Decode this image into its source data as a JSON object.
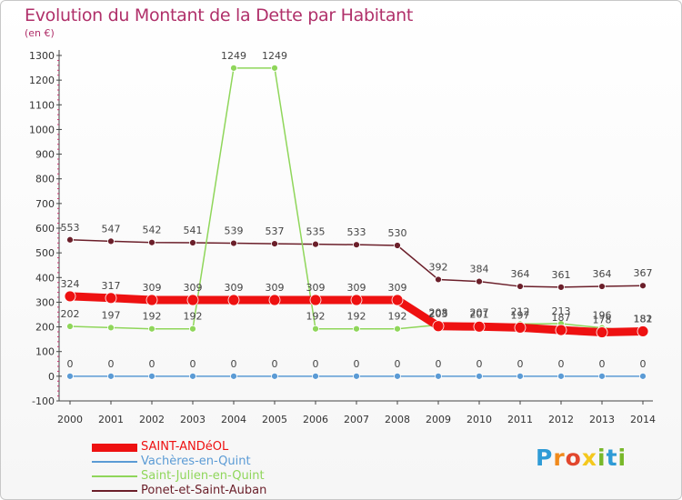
{
  "chart_data": {
    "type": "line",
    "title": "Evolution du Montant de la Dette par Habitant",
    "unit_label": "(en €)",
    "x": [
      "2000",
      "2001",
      "2002",
      "2003",
      "2004",
      "2005",
      "2006",
      "2007",
      "2008",
      "2009",
      "2010",
      "2011",
      "2012",
      "2013",
      "2014"
    ],
    "ylim": [
      -100,
      1300
    ],
    "yticks": [
      -100,
      0,
      100,
      200,
      300,
      400,
      500,
      600,
      700,
      800,
      900,
      1000,
      1100,
      1200,
      1300
    ],
    "grid": false,
    "legend_position": "bottom-left",
    "series": [
      {
        "name": "Ponet-et-Saint-Auban",
        "color": "#6b1f2a",
        "width": 1.5,
        "values": [
          553,
          547,
          542,
          541,
          539,
          537,
          535,
          533,
          530,
          392,
          384,
          364,
          361,
          364,
          367
        ],
        "labels": [
          "553",
          "547",
          "542",
          "541",
          "539",
          "537",
          "535",
          "533",
          "530",
          "392",
          "384",
          "364",
          "361",
          "364",
          "367"
        ]
      },
      {
        "name": "Saint-Julien-en-Quint",
        "color": "#8fd65a",
        "width": 1.5,
        "values": [
          202,
          197,
          192,
          192,
          1249,
          1249,
          192,
          192,
          192,
          208,
          207,
          212,
          213,
          196,
          181
        ],
        "labels": [
          "202",
          "197",
          "192",
          "192",
          "1249",
          "1249",
          "192",
          "192",
          "192",
          "208",
          "207",
          "212",
          "213",
          "196",
          "181"
        ]
      },
      {
        "name": "Vachères-en-Quint",
        "color": "#5b9bd5",
        "width": 1.5,
        "values": [
          0,
          0,
          0,
          0,
          0,
          0,
          0,
          0,
          0,
          0,
          0,
          0,
          0,
          0,
          0
        ],
        "labels": [
          "0",
          "0",
          "0",
          "0",
          "0",
          "0",
          "0",
          "0",
          "0",
          "0",
          "0",
          "0",
          "0",
          "0",
          "0"
        ]
      },
      {
        "name": "SAINT-ANDéOL",
        "color": "#ee1111",
        "width": 9,
        "values": [
          324,
          317,
          309,
          309,
          309,
          309,
          309,
          309,
          309,
          203,
          201,
          197,
          187,
          178,
          182
        ],
        "labels": [
          "324",
          "317",
          "309",
          "309",
          "309",
          "309",
          "309",
          "309",
          "309",
          "203",
          "201",
          "197",
          "187",
          "178",
          "182"
        ]
      }
    ]
  },
  "legend": [
    {
      "name": "SAINT-ANDéOL",
      "color": "#ee1111",
      "thickness": 9
    },
    {
      "name": "Vachères-en-Quint",
      "color": "#5b9bd5",
      "thickness": 2
    },
    {
      "name": "Saint-Julien-en-Quint",
      "color": "#8fd65a",
      "thickness": 2
    },
    {
      "name": "Ponet-et-Saint-Auban",
      "color": "#6b1f2a",
      "thickness": 2
    }
  ],
  "logo": {
    "text": "Proxiti"
  }
}
